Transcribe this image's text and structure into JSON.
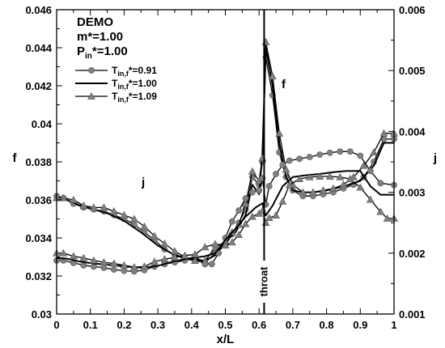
{
  "chart_data": {
    "type": "line",
    "xlabel": "x/L",
    "ylabel_left": "f",
    "ylabel_right": "j",
    "xlim": [
      0,
      1
    ],
    "ylim_left": [
      0.03,
      0.046
    ],
    "ylim_right": [
      0.001,
      0.006
    ],
    "x_ticks": [
      "0",
      "0.1",
      "0.2",
      "0.3",
      "0.4",
      "0.5",
      "0.6",
      "0.7",
      "0.8",
      "0.9",
      "1"
    ],
    "y_left_ticks": [
      "0.03",
      "0.032",
      "0.034",
      "0.036",
      "0.038",
      "0.04",
      "0.042",
      "0.044",
      "0.046"
    ],
    "y_right_ticks": [
      "0.001",
      "0.002",
      "0.003",
      "0.004",
      "0.005",
      "0.006"
    ],
    "grid": false,
    "legend_position": "top-left",
    "info_lines": [
      "DEMO",
      "m*=1.00",
      "P",
      "in",
      "*=1.00"
    ],
    "legend": [
      {
        "base": "T",
        "sub": "in,f",
        "suffix": "*=0.91",
        "marker": "circle",
        "color": "#808080"
      },
      {
        "base": "T",
        "sub": "in,f",
        "suffix": "*=1.00",
        "marker": "none",
        "color": "#000000"
      },
      {
        "base": "T",
        "sub": "in,f",
        "suffix": "*=1.09",
        "marker": "triangle",
        "color": "#808080"
      }
    ],
    "annotations": {
      "f_label": "f",
      "j_label": "j",
      "throat_label": "throat",
      "throat_x": 0.615
    },
    "series": [
      {
        "quantity": "f",
        "axis": "left",
        "legend_index": 0,
        "marker": "circle",
        "x": [
          0,
          0.02,
          0.05,
          0.08,
          0.11,
          0.14,
          0.17,
          0.2,
          0.23,
          0.26,
          0.29,
          0.32,
          0.35,
          0.38,
          0.41,
          0.44,
          0.47,
          0.5,
          0.52,
          0.54,
          0.56,
          0.58,
          0.6,
          0.61,
          0.62,
          0.64,
          0.66,
          0.68,
          0.7,
          0.73,
          0.76,
          0.79,
          0.82,
          0.85,
          0.88,
          0.91,
          0.94,
          0.97,
          1.0
        ],
        "y": [
          0.0362,
          0.0361,
          0.0358,
          0.0356,
          0.0355,
          0.0354,
          0.0352,
          0.035,
          0.0347,
          0.0343,
          0.0339,
          0.0334,
          0.0331,
          0.0329,
          0.0328,
          0.0327,
          0.0332,
          0.0336,
          0.0342,
          0.0348,
          0.0355,
          0.0372,
          0.0368,
          0.038,
          0.0435,
          0.0415,
          0.0385,
          0.0372,
          0.0365,
          0.0362,
          0.0362,
          0.0363,
          0.0364,
          0.0366,
          0.0368,
          0.0372,
          0.038,
          0.0392,
          0.0392
        ]
      },
      {
        "quantity": "f",
        "axis": "left",
        "legend_index": 1,
        "marker": "none",
        "x": [
          0,
          0.03,
          0.07,
          0.11,
          0.15,
          0.2,
          0.25,
          0.3,
          0.35,
          0.4,
          0.44,
          0.47,
          0.5,
          0.53,
          0.56,
          0.58,
          0.6,
          0.61,
          0.62,
          0.64,
          0.66,
          0.68,
          0.7,
          0.73,
          0.76,
          0.8,
          0.85,
          0.9,
          0.94,
          0.97,
          1.0
        ],
        "y": [
          0.036,
          0.036,
          0.0357,
          0.0355,
          0.0353,
          0.0349,
          0.0343,
          0.0336,
          0.0331,
          0.0329,
          0.0328,
          0.0331,
          0.0338,
          0.0343,
          0.0352,
          0.0368,
          0.0363,
          0.0385,
          0.044,
          0.042,
          0.039,
          0.0372,
          0.0365,
          0.0364,
          0.0364,
          0.0365,
          0.0367,
          0.037,
          0.0378,
          0.039,
          0.039
        ]
      },
      {
        "quantity": "f",
        "axis": "left",
        "legend_index": 2,
        "marker": "triangle",
        "x": [
          0,
          0.02,
          0.05,
          0.08,
          0.11,
          0.14,
          0.17,
          0.2,
          0.23,
          0.26,
          0.29,
          0.32,
          0.35,
          0.38,
          0.41,
          0.44,
          0.47,
          0.5,
          0.52,
          0.54,
          0.56,
          0.58,
          0.6,
          0.61,
          0.62,
          0.64,
          0.66,
          0.68,
          0.7,
          0.73,
          0.76,
          0.79,
          0.82,
          0.85,
          0.88,
          0.91,
          0.94,
          0.97,
          1.0
        ],
        "y": [
          0.0361,
          0.0361,
          0.036,
          0.0357,
          0.0356,
          0.0356,
          0.0354,
          0.0352,
          0.035,
          0.0346,
          0.0341,
          0.0337,
          0.0333,
          0.033,
          0.0328,
          0.0328,
          0.0335,
          0.0338,
          0.0343,
          0.0347,
          0.0358,
          0.0375,
          0.037,
          0.0382,
          0.0443,
          0.0425,
          0.0395,
          0.0376,
          0.0368,
          0.0364,
          0.0364,
          0.0365,
          0.0366,
          0.0368,
          0.0372,
          0.0378,
          0.0385,
          0.0395,
          0.0395
        ]
      },
      {
        "quantity": "j",
        "axis": "right",
        "legend_index": 0,
        "marker": "circle",
        "x": [
          0,
          0.02,
          0.05,
          0.08,
          0.11,
          0.14,
          0.17,
          0.2,
          0.23,
          0.26,
          0.29,
          0.32,
          0.35,
          0.38,
          0.41,
          0.44,
          0.46,
          0.48,
          0.5,
          0.52,
          0.54,
          0.56,
          0.58,
          0.6,
          0.61,
          0.62,
          0.63,
          0.65,
          0.67,
          0.69,
          0.72,
          0.75,
          0.78,
          0.81,
          0.84,
          0.87,
          0.9,
          0.93,
          0.96,
          1.0
        ],
        "y": [
          0.00188,
          0.00188,
          0.00184,
          0.0018,
          0.00178,
          0.00176,
          0.00173,
          0.00171,
          0.0017,
          0.00172,
          0.00178,
          0.00182,
          0.00185,
          0.00188,
          0.00195,
          0.00182,
          0.00182,
          0.002,
          0.00225,
          0.00252,
          0.0027,
          0.0029,
          0.003,
          0.00303,
          0.00323,
          0.0028,
          0.0031,
          0.0033,
          0.00345,
          0.00352,
          0.00355,
          0.00358,
          0.00362,
          0.00365,
          0.00367,
          0.00367,
          0.0036,
          0.00335,
          0.00315,
          0.00312
        ]
      },
      {
        "quantity": "j",
        "axis": "right",
        "legend_index": 1,
        "marker": "none",
        "x": [
          0,
          0.03,
          0.07,
          0.11,
          0.15,
          0.2,
          0.25,
          0.3,
          0.35,
          0.4,
          0.44,
          0.47,
          0.5,
          0.53,
          0.56,
          0.59,
          0.61,
          0.62,
          0.64,
          0.67,
          0.7,
          0.74,
          0.78,
          0.82,
          0.86,
          0.9,
          0.93,
          0.96,
          1.0
        ],
        "y": [
          0.00192,
          0.00191,
          0.00186,
          0.00183,
          0.00181,
          0.00178,
          0.00176,
          0.00179,
          0.00187,
          0.00192,
          0.00195,
          0.002,
          0.00222,
          0.0024,
          0.0026,
          0.00275,
          0.00282,
          0.00262,
          0.00278,
          0.0031,
          0.00325,
          0.00328,
          0.0033,
          0.00333,
          0.00335,
          0.00335,
          0.0031,
          0.00296,
          0.00296
        ]
      },
      {
        "quantity": "j",
        "axis": "right",
        "legend_index": 2,
        "marker": "triangle",
        "x": [
          0,
          0.02,
          0.05,
          0.08,
          0.11,
          0.14,
          0.17,
          0.2,
          0.23,
          0.26,
          0.29,
          0.32,
          0.35,
          0.38,
          0.41,
          0.44,
          0.47,
          0.5,
          0.52,
          0.54,
          0.56,
          0.58,
          0.6,
          0.61,
          0.62,
          0.63,
          0.65,
          0.67,
          0.69,
          0.72,
          0.75,
          0.78,
          0.81,
          0.84,
          0.87,
          0.9,
          0.93,
          0.96,
          0.98,
          1.0
        ],
        "y": [
          0.002,
          0.002,
          0.00195,
          0.00192,
          0.00188,
          0.00185,
          0.00183,
          0.0018,
          0.00177,
          0.00178,
          0.00186,
          0.0019,
          0.00193,
          0.00196,
          0.00198,
          0.0021,
          0.00215,
          0.00213,
          0.00218,
          0.0023,
          0.00248,
          0.0026,
          0.00265,
          0.0027,
          0.0025,
          0.00258,
          0.00262,
          0.00285,
          0.00312,
          0.00322,
          0.00325,
          0.00326,
          0.00326,
          0.00325,
          0.00322,
          0.00308,
          0.00288,
          0.00268,
          0.00257,
          0.00257
        ]
      }
    ]
  }
}
